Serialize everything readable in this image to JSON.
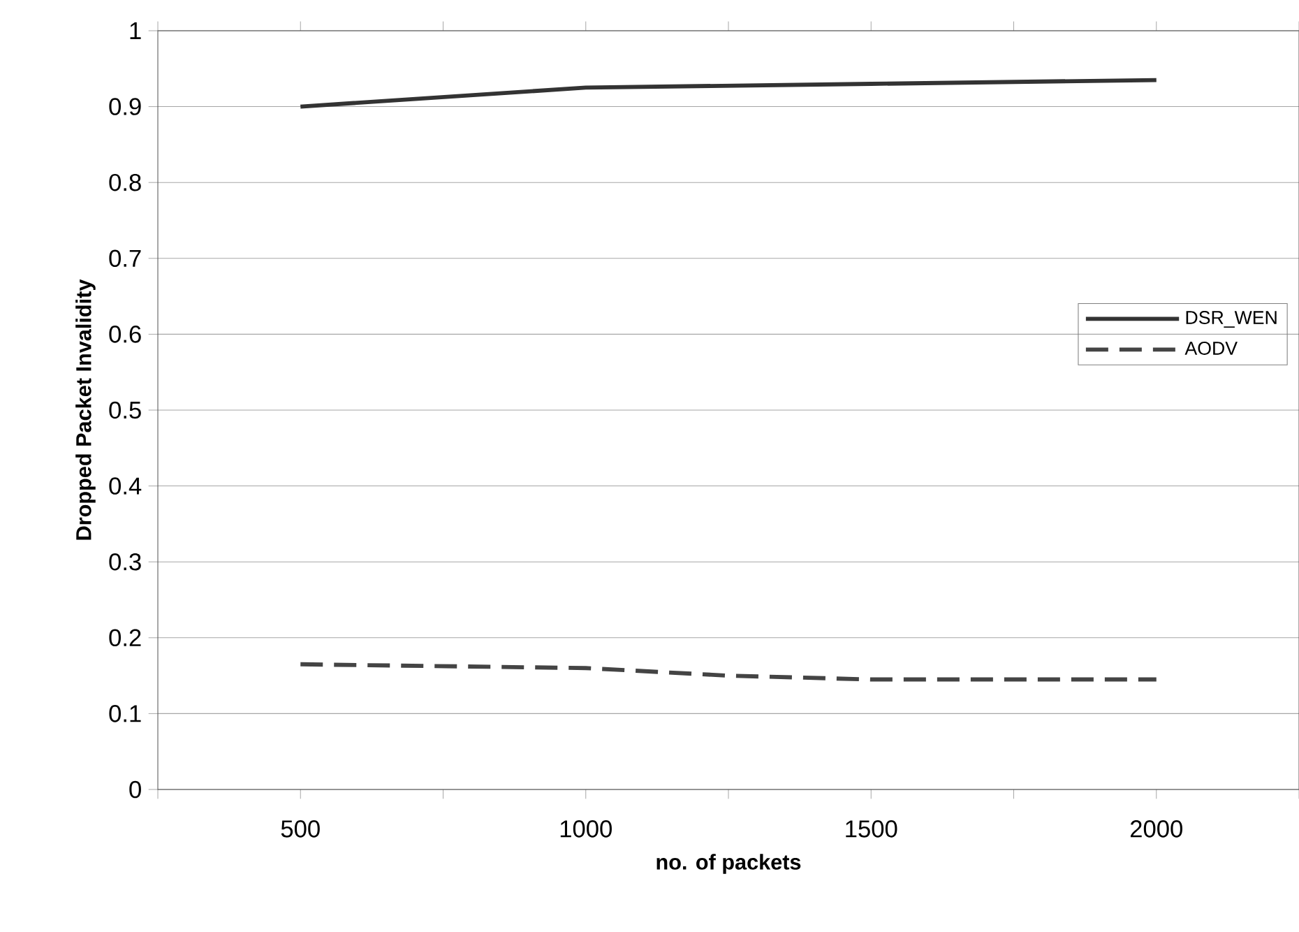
{
  "chart_data": {
    "type": "line",
    "xlabel": "no. of packets",
    "ylabel": "Dropped Packet Invalidity",
    "xlim": [
      250,
      2250
    ],
    "xticks": [
      {
        "value": 250,
        "label": null
      },
      500,
      {
        "value": 750,
        "label": null
      },
      1000,
      {
        "value": 1250,
        "label": null
      },
      1500,
      {
        "value": 1750,
        "label": null
      },
      2000,
      {
        "value": 2250,
        "label": null
      }
    ],
    "ylim": [
      0,
      1
    ],
    "yticks": [
      0,
      0.1,
      0.2,
      0.3,
      0.4,
      0.5,
      0.6,
      0.7,
      0.8,
      0.9,
      1
    ],
    "grid": "y",
    "legend": "right",
    "marker": "none",
    "series": [
      {
        "name": "DSR_WEN",
        "color": "#333333",
        "line_style": "solid",
        "x": [
          500,
          1000,
          1500,
          2000
        ],
        "values": [
          0.9,
          0.925,
          0.93,
          0.935
        ]
      },
      {
        "name": "AODV",
        "color": "#444444",
        "line_style": "dashed",
        "x": [
          500,
          1000,
          1250,
          1500,
          2000
        ],
        "values": [
          0.165,
          0.16,
          0.15,
          0.145,
          0.145
        ]
      }
    ]
  }
}
